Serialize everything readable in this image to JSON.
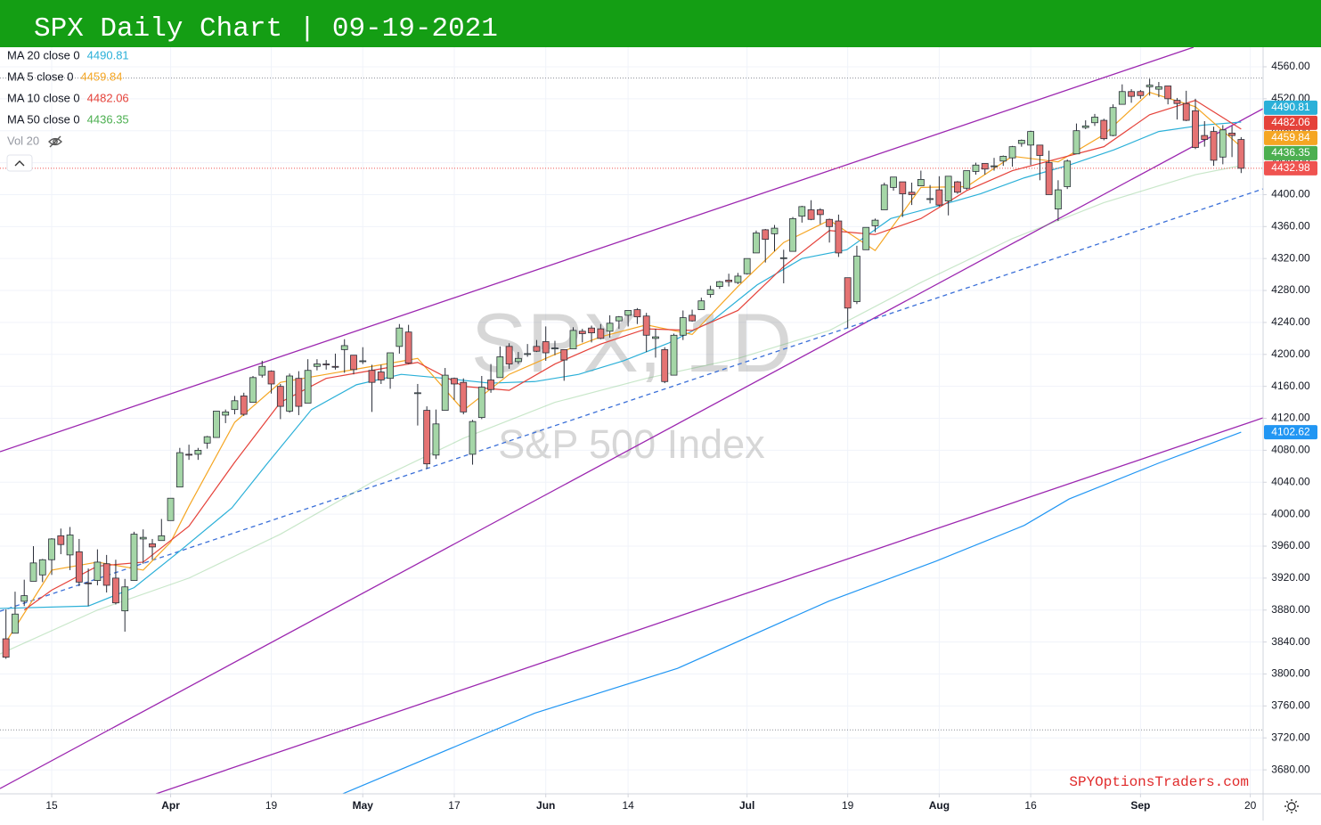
{
  "header": {
    "title": "SPX Daily Chart | 09-19-2021"
  },
  "chart_data": {
    "type": "candlestick",
    "symbol_watermark": "SPX, 1D",
    "name_watermark": "S&P 500 Index",
    "volume_label": "Vol 20",
    "credit": "SPYOptionsTraders.com",
    "up_color": "#a5d6a7",
    "down_color": "#e57373",
    "last_color": "#ef5350",
    "grid": true,
    "xlim": [
      -5.65,
      132.4
    ],
    "ylim": [
      3650,
      4584.5
    ],
    "xticks": [
      {
        "value": 0,
        "label": "15"
      },
      {
        "value": 13,
        "label": "Apr"
      },
      {
        "value": 24,
        "label": "19"
      },
      {
        "value": 34,
        "label": "May"
      },
      {
        "value": 44,
        "label": "17"
      },
      {
        "value": 54,
        "label": "Jun"
      },
      {
        "value": 63,
        "label": "14"
      },
      {
        "value": 76,
        "label": "Jul"
      },
      {
        "value": 87,
        "label": "19"
      },
      {
        "value": 97,
        "label": "Aug"
      },
      {
        "value": 107,
        "label": "16"
      },
      {
        "value": 119,
        "label": "Sep"
      },
      {
        "value": 131,
        "label": "20"
      }
    ],
    "yticks": [
      {
        "value": 3680,
        "label": "3680.00"
      },
      {
        "value": 3720,
        "label": "3720.00"
      },
      {
        "value": 3760,
        "label": "3760.00"
      },
      {
        "value": 3800,
        "label": "3800.00"
      },
      {
        "value": 3840,
        "label": "3840.00"
      },
      {
        "value": 3880,
        "label": "3880.00"
      },
      {
        "value": 3920,
        "label": "3920.00"
      },
      {
        "value": 3960,
        "label": "3960.00"
      },
      {
        "value": 4000,
        "label": "4000.00"
      },
      {
        "value": 4040,
        "label": "4040.00"
      },
      {
        "value": 4080,
        "label": "4080.00"
      },
      {
        "value": 4120,
        "label": "4120.00"
      },
      {
        "value": 4160,
        "label": "4160.00"
      },
      {
        "value": 4200,
        "label": "4200.00"
      },
      {
        "value": 4240,
        "label": "4240.00"
      },
      {
        "value": 4280,
        "label": "4280.00"
      },
      {
        "value": 4320,
        "label": "4320.00"
      },
      {
        "value": 4360,
        "label": "4360.00"
      },
      {
        "value": 4400,
        "label": "4400.00"
      },
      {
        "value": 4440,
        "label": "4440.00"
      },
      {
        "value": 4480,
        "label": "4480.00"
      },
      {
        "value": 4520,
        "label": "4520.00"
      },
      {
        "value": 4560,
        "label": "4560.00"
      }
    ],
    "x": [
      -5,
      -4,
      -3,
      -2,
      -1,
      0,
      1,
      2,
      3,
      4,
      5,
      6,
      7,
      8,
      9,
      10,
      11,
      12,
      13,
      14,
      15,
      16,
      17,
      18,
      19,
      20,
      21,
      22,
      23,
      24,
      25,
      26,
      27,
      28,
      29,
      30,
      31,
      32,
      33,
      34,
      35,
      36,
      37,
      38,
      39,
      40,
      41,
      42,
      43,
      44,
      45,
      46,
      47,
      48,
      49,
      50,
      51,
      52,
      53,
      54,
      55,
      56,
      57,
      58,
      59,
      60,
      61,
      62,
      63,
      64,
      65,
      66,
      67,
      68,
      69,
      70,
      71,
      72,
      73,
      74,
      75,
      76,
      77,
      78,
      79,
      80,
      81,
      82,
      83,
      84,
      85,
      86,
      87,
      88,
      89,
      90,
      91,
      92,
      93,
      94,
      95,
      96,
      97,
      98,
      99,
      100,
      101,
      102,
      103,
      104,
      105,
      106,
      107,
      108,
      109,
      110,
      111,
      112,
      113,
      114,
      115,
      116,
      117,
      118,
      119,
      120,
      121,
      122,
      123,
      124,
      125,
      126,
      127,
      128,
      129,
      130
    ],
    "open": [
      3844,
      3851,
      3891,
      3916,
      3924,
      3943,
      3973,
      3949,
      3953,
      3914,
      3917,
      3938,
      3920,
      3879,
      3917,
      3969,
      3963,
      3967,
      3992,
      4034,
      4075,
      4075,
      4089,
      4096,
      4124,
      4131,
      4148,
      4140,
      4174,
      4179,
      4160,
      4129,
      4170,
      4139,
      4185,
      4188,
      4185,
      4206,
      4199,
      4191,
      4180,
      4178,
      4170,
      4210,
      4228,
      4151,
      4130,
      4074,
      4130,
      4170,
      4165,
      4075,
      4121,
      4168,
      4171,
      4210,
      4191,
      4201,
      4210,
      4216,
      4207,
      4206,
      4207,
      4229,
      4233,
      4232,
      4229,
      4242,
      4249,
      4256,
      4248,
      4220,
      4206,
      4174,
      4224,
      4249,
      4256,
      4275,
      4285,
      4293,
      4290,
      4301,
      4327,
      4356,
      4351,
      4321,
      4329,
      4373,
      4381,
      4381,
      4369,
      4367,
      4296,
      4266,
      4331,
      4361,
      4381,
      4409,
      4416,
      4403,
      4411,
      4395,
      4406,
      4392,
      4416,
      4408,
      4429,
      4439,
      4436,
      4442,
      4446,
      4464,
      4462,
      4462,
      4440,
      4382,
      4410,
      4451,
      4484,
      4490,
      4493,
      4474,
      4513,
      4529,
      4529,
      4535,
      4532,
      4536,
      4518,
      4514,
      4505,
      4474,
      4479,
      4447,
      4477,
      4469
    ],
    "high": [
      3881,
      3903,
      3918,
      3960,
      3944,
      3970,
      3982,
      3984,
      3969,
      3932,
      3956,
      3949,
      3943,
      3919,
      3978,
      3981,
      3969,
      3994,
      4020,
      4083,
      4087,
      4083,
      4098,
      4129,
      4131,
      4148,
      4152,
      4173,
      4192,
      4180,
      4163,
      4176,
      4179,
      4194,
      4194,
      4193,
      4201,
      4219,
      4199,
      4209,
      4187,
      4187,
      4202,
      4238,
      4237,
      4163,
      4135,
      4131,
      4183,
      4171,
      4170,
      4118,
      4173,
      4188,
      4210,
      4214,
      4203,
      4213,
      4218,
      4235,
      4217,
      4206,
      4234,
      4232,
      4236,
      4238,
      4249,
      4248,
      4255,
      4258,
      4252,
      4232,
      4209,
      4226,
      4255,
      4256,
      4271,
      4286,
      4292,
      4301,
      4302,
      4320,
      4355,
      4357,
      4362,
      4331,
      4372,
      4386,
      4393,
      4383,
      4370,
      4375,
      4296,
      4336,
      4359,
      4370,
      4415,
      4422,
      4416,
      4415,
      4430,
      4412,
      4423,
      4423,
      4417,
      4430,
      4440,
      4439,
      4446,
      4449,
      4461,
      4469,
      4480,
      4462,
      4455,
      4418,
      4444,
      4489,
      4493,
      4501,
      4495,
      4513,
      4538,
      4532,
      4531,
      4545,
      4541,
      4536,
      4521,
      4530,
      4520,
      4492,
      4485,
      4487,
      4486,
      4472
    ],
    "low": [
      3819,
      3851,
      3885,
      3916,
      3915,
      3924,
      3950,
      3930,
      3910,
      3885,
      3911,
      3902,
      3887,
      3853,
      3917,
      3938,
      3943,
      3967,
      3992,
      4034,
      4068,
      4068,
      4082,
      4096,
      4114,
      4125,
      4123,
      4140,
      4171,
      4151,
      4119,
      4127,
      4124,
      4139,
      4180,
      4181,
      4181,
      4177,
      4175,
      4188,
      4128,
      4163,
      4157,
      4201,
      4188,
      4111,
      4057,
      4069,
      4130,
      4143,
      4125,
      4062,
      4119,
      4152,
      4171,
      4182,
      4188,
      4197,
      4203,
      4192,
      4199,
      4167,
      4207,
      4215,
      4215,
      4219,
      4221,
      4232,
      4235,
      4238,
      4203,
      4196,
      4164,
      4174,
      4218,
      4241,
      4256,
      4271,
      4282,
      4285,
      4288,
      4300,
      4327,
      4315,
      4329,
      4289,
      4329,
      4365,
      4368,
      4363,
      4340,
      4322,
      4233,
      4263,
      4331,
      4353,
      4381,
      4405,
      4372,
      4387,
      4411,
      4389,
      4385,
      4374,
      4401,
      4406,
      4425,
      4425,
      4430,
      4436,
      4435,
      4460,
      4437,
      4418,
      4400,
      4367,
      4407,
      4451,
      4482,
      4486,
      4468,
      4473,
      4513,
      4515,
      4520,
      4524,
      4522,
      4513,
      4494,
      4492,
      4457,
      4460,
      4436,
      4438,
      4447,
      4427
    ],
    "close": [
      3821,
      3875,
      3898,
      3939,
      3943,
      3969,
      3962,
      3974,
      3915,
      3913,
      3940,
      3911,
      3889,
      3909,
      3975,
      3971,
      3959,
      3973,
      4020,
      4077,
      4074,
      4080,
      4097,
      4129,
      4128,
      4142,
      4125,
      4171,
      4185,
      4163,
      4135,
      4173,
      4135,
      4180,
      4188,
      4187,
      4184,
      4211,
      4181,
      4192,
      4165,
      4168,
      4202,
      4233,
      4189,
      4152,
      4063,
      4113,
      4174,
      4163,
      4128,
      4116,
      4159,
      4156,
      4197,
      4188,
      4195,
      4201,
      4204,
      4202,
      4208,
      4193,
      4230,
      4226,
      4227,
      4220,
      4239,
      4247,
      4255,
      4247,
      4224,
      4222,
      4166,
      4224,
      4246,
      4242,
      4267,
      4281,
      4291,
      4291,
      4298,
      4320,
      4352,
      4344,
      4358,
      4321,
      4370,
      4385,
      4369,
      4375,
      4360,
      4327,
      4258,
      4323,
      4359,
      4368,
      4412,
      4422,
      4401,
      4400,
      4419,
      4395,
      4387,
      4423,
      4403,
      4430,
      4437,
      4432,
      4436,
      4448,
      4460,
      4468,
      4479,
      4449,
      4400,
      4406,
      4442,
      4480,
      4486,
      4497,
      4470,
      4509,
      4529,
      4523,
      4524,
      4537,
      4535,
      4520,
      4514,
      4493,
      4459,
      4469,
      4443,
      4481,
      4474,
      4432.98
    ],
    "indicators": [
      {
        "name": "MA 20 close 0",
        "color": "#2bb0d8",
        "opacity": 1,
        "x": [
          -5.65,
          4,
          9,
          13.8,
          19.7,
          23.6,
          28.4,
          33.3,
          38.2,
          43,
          47.9,
          52.8,
          57.6,
          62.5,
          67.4,
          72.2,
          77.1,
          82,
          86.9,
          91.7,
          96.6,
          101.5,
          106.3,
          111.2,
          116.1,
          121,
          125.8,
          130
        ],
        "values": [
          3882,
          3885,
          3908,
          3952,
          4008,
          4064,
          4131,
          4162,
          4175,
          4170,
          4164,
          4166,
          4175,
          4192,
          4214,
          4242,
          4287,
          4320,
          4331,
          4370,
          4385,
          4401,
          4421,
          4437,
          4456,
          4479,
          4487,
          4490.81
        ]
      },
      {
        "name": "MA 5 close 0",
        "color": "#f5a623",
        "opacity": 1,
        "x": [
          -5,
          0,
          5,
          10,
          13,
          15,
          20,
          25,
          30,
          35,
          40,
          45,
          50,
          55,
          60,
          65,
          70,
          75,
          80,
          85,
          90,
          95,
          100,
          105,
          110,
          115,
          120,
          125,
          130
        ],
        "values": [
          3840,
          3930,
          3940,
          3930,
          3965,
          4010,
          4115,
          4165,
          4175,
          4185,
          4195,
          4130,
          4175,
          4200,
          4222,
          4237,
          4225,
          4285,
          4340,
          4368,
          4330,
          4409,
          4410,
          4448,
          4441,
          4475,
          4528,
          4510,
          4459.84
        ]
      },
      {
        "name": "MA 10 close 0",
        "color": "#e5423a",
        "opacity": 1,
        "x": [
          -3,
          0,
          5,
          10,
          15,
          20,
          25,
          30,
          35,
          40,
          45,
          50,
          55,
          60,
          65,
          70,
          75,
          80,
          85,
          90,
          95,
          100,
          105,
          110,
          115,
          120,
          125,
          130
        ],
        "values": [
          3880,
          3905,
          3935,
          3940,
          3985,
          4065,
          4140,
          4170,
          4180,
          4190,
          4160,
          4155,
          4188,
          4213,
          4232,
          4230,
          4255,
          4310,
          4355,
          4350,
          4370,
          4405,
          4430,
          4445,
          4460,
          4500,
          4518,
          4482.06
        ]
      },
      {
        "name": "MA 50 close 0",
        "color": "#4caf50",
        "opacity": 0.3,
        "x": [
          -5.65,
          5,
          15,
          25,
          35,
          45,
          55,
          65,
          75,
          85,
          95,
          105,
          115,
          125,
          130
        ],
        "values": [
          3825,
          3880,
          3920,
          3975,
          4040,
          4095,
          4140,
          4170,
          4195,
          4230,
          4290,
          4345,
          4390,
          4425,
          4436.35
        ]
      },
      {
        "color": "#2196f3",
        "opacity": 1,
        "x": [
          31.8,
          52.8,
          68.4,
          84.9,
          96.6,
          106.3,
          111.2,
          121,
          130
        ],
        "values": [
          3650,
          3751,
          3807,
          3891,
          3941,
          3986,
          4019,
          4064,
          4102.62
        ]
      }
    ],
    "trendlines": [
      {
        "color": "#9c27b0",
        "dash": false,
        "x": [
          -5.65,
          124.8
        ],
        "values": [
          4078.2,
          4584.5
        ]
      },
      {
        "color": "#9c27b0",
        "dash": false,
        "x": [
          -5.65,
          132.4
        ],
        "values": [
          3656.6,
          4507.6
        ]
      },
      {
        "color": "#9c27b0",
        "dash": false,
        "x": [
          11.4,
          132.4
        ],
        "values": [
          3650,
          4120.6
        ]
      },
      {
        "color": "#3a6fd8",
        "dash": true,
        "x": [
          -5.65,
          132.4
        ],
        "values": [
          3878.5,
          4407.2
        ]
      }
    ],
    "hlines": [
      {
        "value": 4545.85,
        "color": "#8a8d96"
      },
      {
        "value": 3730,
        "color": "#8a8d96"
      }
    ]
  }
}
